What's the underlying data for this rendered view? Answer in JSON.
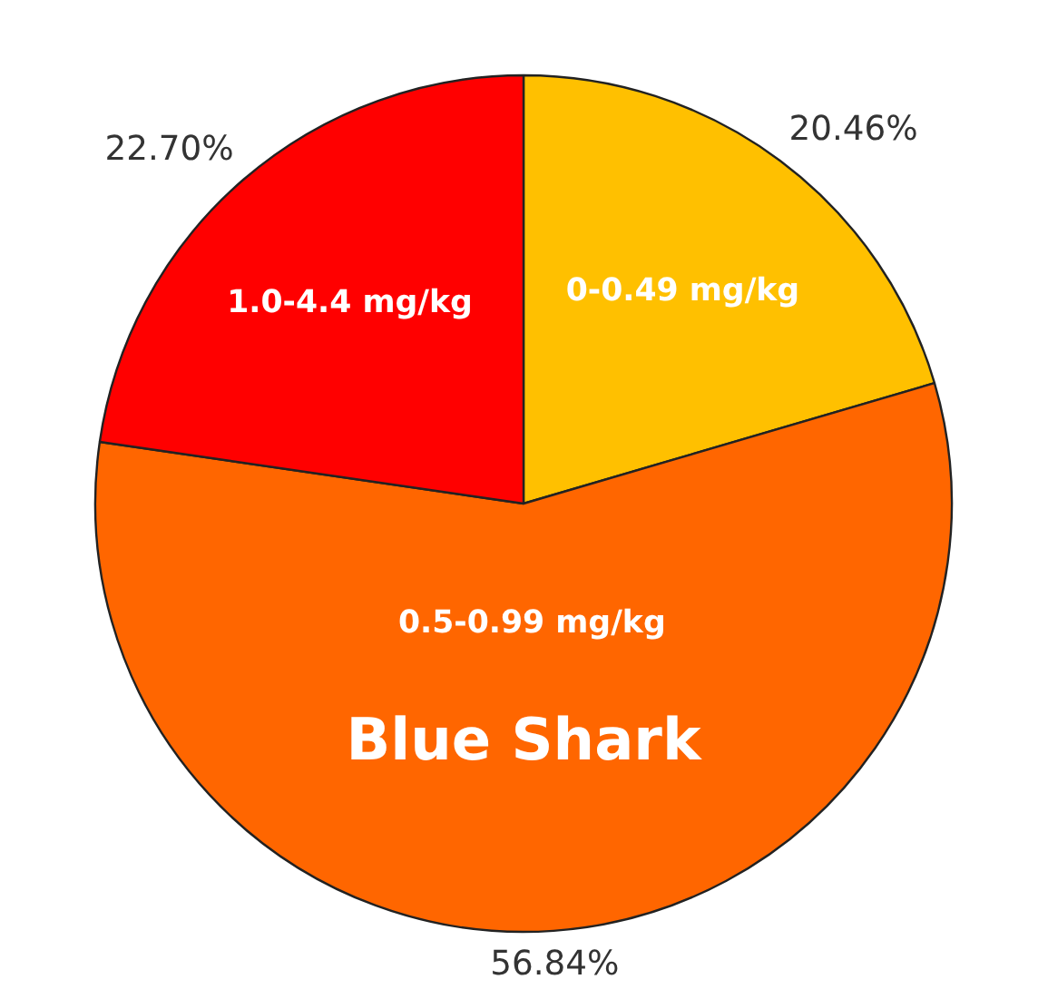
{
  "chart_data": {
    "type": "pie",
    "title": "Blue Shark",
    "categories": [
      "0-0.49 mg/kg",
      "0.5-0.99 mg/kg",
      "1.0-4.4 mg/kg"
    ],
    "values": [
      20.46,
      56.84,
      22.7
    ],
    "value_labels": [
      "20.46%",
      "56.84%",
      "22.70%"
    ],
    "colors": [
      "#ffc000",
      "#ff6600",
      "#ff0000"
    ]
  }
}
